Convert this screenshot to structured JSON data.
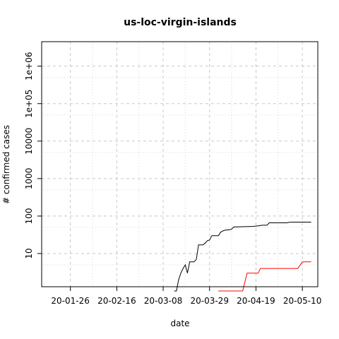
{
  "chart_data": {
    "type": "line",
    "title": "us-loc-virgin-islands",
    "xlabel": "date",
    "ylabel": "# confirmed cases",
    "y_scale": "log",
    "xlim": [
      "2020-01-13",
      "2020-05-17"
    ],
    "ylim": [
      1.3,
      4500000
    ],
    "x_ticks": [
      {
        "date": "2020-01-26",
        "label": "20-01-26"
      },
      {
        "date": "2020-02-16",
        "label": "20-02-16"
      },
      {
        "date": "2020-03-08",
        "label": "20-03-08"
      },
      {
        "date": "2020-03-29",
        "label": "20-03-29"
      },
      {
        "date": "2020-04-19",
        "label": "20-04-19"
      },
      {
        "date": "2020-05-10",
        "label": "20-05-10"
      }
    ],
    "x_minor_grid_dates": [
      "2020-02-05",
      "2020-02-26",
      "2020-03-18",
      "2020-04-08",
      "2020-04-29"
    ],
    "y_ticks": [
      {
        "value": 10,
        "label": "10"
      },
      {
        "value": 100,
        "label": "100"
      },
      {
        "value": 1000,
        "label": "1000"
      },
      {
        "value": 10000,
        "label": "10000"
      },
      {
        "value": 100000,
        "label": "1e+05"
      },
      {
        "value": 1000000,
        "label": "1e+06"
      }
    ],
    "y_minor_grid_values": [
      5,
      50,
      500,
      5000,
      50000,
      500000
    ],
    "grid": true,
    "series": [
      {
        "color": "#000000",
        "points": [
          [
            "2020-03-13",
            1
          ],
          [
            "2020-03-14",
            1
          ],
          [
            "2020-03-15",
            2
          ],
          [
            "2020-03-16",
            3
          ],
          [
            "2020-03-17",
            4
          ],
          [
            "2020-03-18",
            5
          ],
          [
            "2020-03-19",
            3
          ],
          [
            "2020-03-20",
            6
          ],
          [
            "2020-03-22",
            6
          ],
          [
            "2020-03-23",
            7
          ],
          [
            "2020-03-24",
            17
          ],
          [
            "2020-03-26",
            17
          ],
          [
            "2020-03-27",
            19
          ],
          [
            "2020-03-28",
            22
          ],
          [
            "2020-03-29",
            23
          ],
          [
            "2020-03-30",
            30
          ],
          [
            "2020-04-02",
            30
          ],
          [
            "2020-04-03",
            37
          ],
          [
            "2020-04-04",
            40
          ],
          [
            "2020-04-05",
            42
          ],
          [
            "2020-04-07",
            43
          ],
          [
            "2020-04-08",
            45
          ],
          [
            "2020-04-09",
            51
          ],
          [
            "2020-04-18",
            53
          ],
          [
            "2020-04-19",
            54
          ],
          [
            "2020-04-20",
            55
          ],
          [
            "2020-04-22",
            57
          ],
          [
            "2020-04-24",
            57
          ],
          [
            "2020-04-25",
            66
          ],
          [
            "2020-05-03",
            66
          ],
          [
            "2020-05-04",
            68
          ],
          [
            "2020-05-06",
            69
          ],
          [
            "2020-05-14",
            69
          ]
        ]
      },
      {
        "color": "#ff0000",
        "points": [
          [
            "2020-04-02",
            1
          ],
          [
            "2020-04-13",
            1
          ],
          [
            "2020-04-15",
            3
          ],
          [
            "2020-04-20",
            3
          ],
          [
            "2020-04-21",
            4
          ],
          [
            "2020-05-08",
            4
          ],
          [
            "2020-05-10",
            6
          ],
          [
            "2020-05-14",
            6
          ]
        ]
      }
    ]
  }
}
